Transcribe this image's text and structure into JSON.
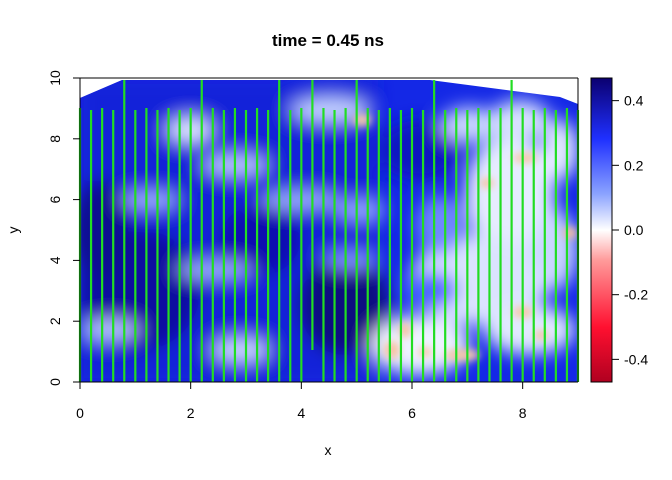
{
  "chart_data": {
    "type": "heatmap",
    "title": "time = 0.45 ns",
    "xlabel": "x",
    "ylabel": "y",
    "xlim": [
      0,
      9
    ],
    "ylim": [
      0,
      10
    ],
    "x_ticks": [
      0,
      2,
      4,
      6,
      8
    ],
    "y_ticks": [
      0,
      2,
      4,
      6,
      8,
      10
    ],
    "colorbar": {
      "range": [
        -0.47,
        0.47
      ],
      "ticks": [
        -0.4,
        -0.2,
        0.0,
        0.2,
        0.4
      ],
      "tick_labels": [
        "-0.4",
        "-0.2",
        "0.0",
        "0.2",
        "0.4"
      ],
      "colors": {
        "low": "#cc0022",
        "mid": "#ffffff",
        "high": "#0b0070"
      }
    },
    "overlay": {
      "type": "vertical-lines",
      "color": "#22dd22",
      "x": [
        0.0,
        0.2,
        0.4,
        0.6,
        0.8,
        1.0,
        1.2,
        1.4,
        1.6,
        1.8,
        2.0,
        2.2,
        2.4,
        2.6,
        2.8,
        3.0,
        3.2,
        3.4,
        3.6,
        3.8,
        4.0,
        4.2,
        4.4,
        4.6,
        4.8,
        5.0,
        5.2,
        5.4,
        5.6,
        5.8,
        6.0,
        6.2,
        6.4,
        6.6,
        6.8,
        7.0,
        7.2,
        7.4,
        7.6,
        7.8,
        8.0,
        8.2,
        8.4,
        8.6,
        8.8,
        9.0
      ]
    },
    "field_features": [
      {
        "x": 1.5,
        "y": 3.0,
        "value": 0.45
      },
      {
        "x": 0.6,
        "y": 4.5,
        "value": 0.42
      },
      {
        "x": 3.0,
        "y": 7.5,
        "value": 0.3
      },
      {
        "x": 5.0,
        "y": 2.5,
        "value": 0.45
      },
      {
        "x": 7.6,
        "y": 4.0,
        "value": 0.05
      },
      {
        "x": 8.5,
        "y": 2.5,
        "value": -0.02
      },
      {
        "x": 6.5,
        "y": 0.9,
        "value": -0.04
      },
      {
        "x": 5.2,
        "y": 9.0,
        "value": -0.03
      },
      {
        "x": 8.2,
        "y": 7.5,
        "value": -0.04
      },
      {
        "x": 7.4,
        "y": 6.5,
        "value": -0.03
      },
      {
        "x": 8.9,
        "y": 4.9,
        "value": -0.05
      }
    ]
  }
}
